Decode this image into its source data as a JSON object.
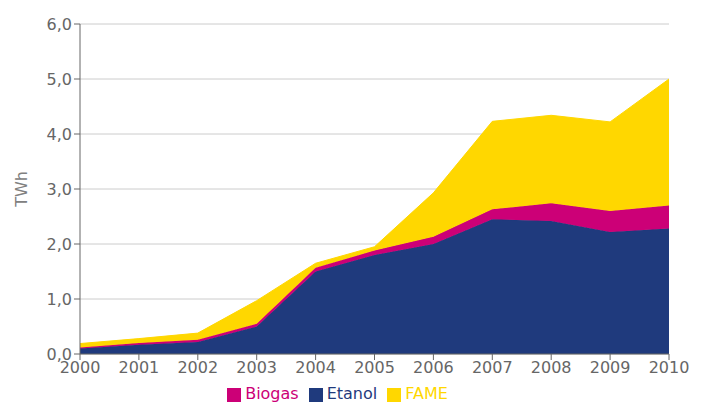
{
  "chart_data": {
    "type": "area",
    "stacked": true,
    "x": [
      2000,
      2001,
      2002,
      2003,
      2004,
      2005,
      2006,
      2007,
      2008,
      2009,
      2010
    ],
    "series": [
      {
        "name": "Etanol",
        "color": "#1F3A7D",
        "values": [
          0.1,
          0.17,
          0.22,
          0.5,
          1.5,
          1.8,
          2.0,
          2.45,
          2.42,
          2.22,
          2.28
        ]
      },
      {
        "name": "Biogas",
        "color": "#CC0077",
        "values": [
          0.02,
          0.03,
          0.04,
          0.05,
          0.07,
          0.08,
          0.13,
          0.18,
          0.32,
          0.38,
          0.42
        ]
      },
      {
        "name": "FAME",
        "color": "#FFD700",
        "values": [
          0.07,
          0.08,
          0.12,
          0.42,
          0.08,
          0.07,
          0.8,
          1.6,
          1.6,
          1.62,
          2.3
        ]
      }
    ],
    "xlim": [
      2000,
      2010
    ],
    "xticks": [
      2000,
      2001,
      2002,
      2003,
      2004,
      2005,
      2006,
      2007,
      2008,
      2009,
      2010
    ],
    "ylim": [
      0,
      6.0
    ],
    "yticks": [
      {
        "value": 0.0,
        "label": "0,0"
      },
      {
        "value": 1.0,
        "label": "1,0"
      },
      {
        "value": 2.0,
        "label": "2,0"
      },
      {
        "value": 3.0,
        "label": "3,0"
      },
      {
        "value": 4.0,
        "label": "4,0"
      },
      {
        "value": 5.0,
        "label": "5,0"
      },
      {
        "value": 6.0,
        "label": "6,0"
      }
    ],
    "y_label": "TWh",
    "grid": true,
    "legend": "bottom"
  }
}
